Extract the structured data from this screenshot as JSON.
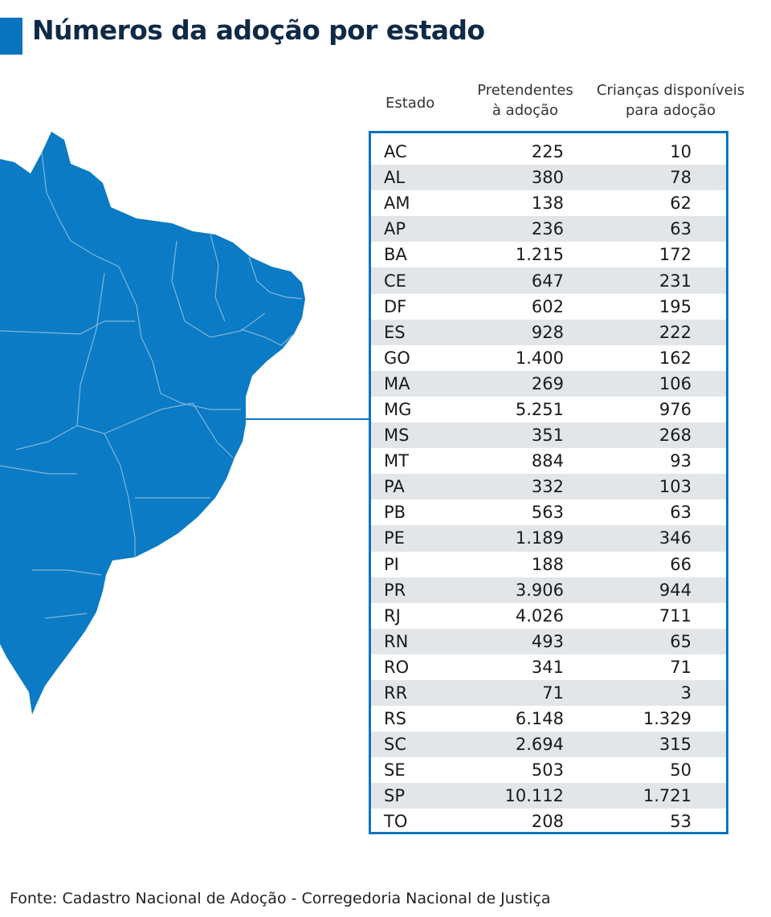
{
  "title": "Números da adoção por estado",
  "colors": {
    "accent": "#0a74c0",
    "map_fill": "#0a7bc4",
    "row_stripe": "#e3e6e9",
    "title": "#0e2a47"
  },
  "headers": {
    "state": "Estado",
    "col1_line1": "Pretendentes",
    "col1_line2": "à adoção",
    "col2_line1": "Crianças disponíveis",
    "col2_line2": "para adoção"
  },
  "chart_data": {
    "type": "table",
    "title": "Números da adoção por estado",
    "columns": [
      "Estado",
      "Pretendentes à adoção",
      "Crianças disponíveis para adoção"
    ],
    "rows": [
      [
        "AC",
        "225",
        "10"
      ],
      [
        "AL",
        "380",
        "78"
      ],
      [
        "AM",
        "138",
        "62"
      ],
      [
        "AP",
        "236",
        "63"
      ],
      [
        "BA",
        "1.215",
        "172"
      ],
      [
        "CE",
        "647",
        "231"
      ],
      [
        "DF",
        "602",
        "195"
      ],
      [
        "ES",
        "928",
        "222"
      ],
      [
        "GO",
        "1.400",
        "162"
      ],
      [
        "MA",
        "269",
        "106"
      ],
      [
        "MG",
        "5.251",
        "976"
      ],
      [
        "MS",
        "351",
        "268"
      ],
      [
        "MT",
        "884",
        "93"
      ],
      [
        "PA",
        "332",
        "103"
      ],
      [
        "PB",
        "563",
        "63"
      ],
      [
        "PE",
        "1.189",
        "346"
      ],
      [
        "PI",
        "188",
        "66"
      ],
      [
        "PR",
        "3.906",
        "944"
      ],
      [
        "RJ",
        "4.026",
        "711"
      ],
      [
        "RN",
        "493",
        "65"
      ],
      [
        "RO",
        "341",
        "71"
      ],
      [
        "RR",
        "71",
        "3"
      ],
      [
        "RS",
        "6.148",
        "1.329"
      ],
      [
        "SC",
        "2.694",
        "315"
      ],
      [
        "SE",
        "503",
        "50"
      ],
      [
        "SP",
        "10.112",
        "1.721"
      ],
      [
        "TO",
        "208",
        "53"
      ]
    ]
  },
  "source": "Fonte: Cadastro Nacional de Adoção - Corregedoria Nacional de Justiça"
}
